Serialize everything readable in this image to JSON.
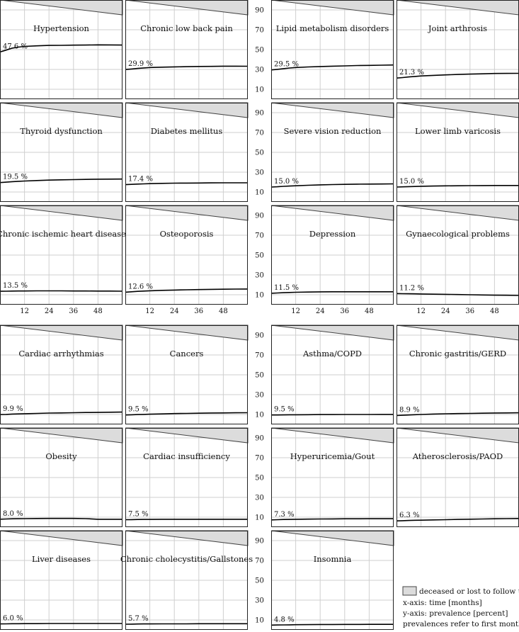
{
  "chart_data": {
    "type": "line",
    "grid": true,
    "xlim": [
      0,
      60
    ],
    "ylim": [
      0,
      100
    ],
    "xticks": [
      12,
      24,
      36,
      48
    ],
    "yticks": [
      10,
      30,
      50,
      70,
      90
    ],
    "x": [
      0,
      3,
      6,
      9,
      12,
      18,
      24,
      30,
      36,
      42,
      48,
      54,
      60
    ],
    "legend": {
      "placement": "bottom-right",
      "swatch_label": "deceased or lost to follow up",
      "notes": [
        "x-axis: time [months]",
        "y-axis: prevalence [percent]",
        "prevalences refer to first month"
      ]
    },
    "panels": [
      {
        "title": "Hypertension",
        "label": "47.6 %",
        "values": [
          47.6,
          49.5,
          51.5,
          52.5,
          53.2,
          53.8,
          54.2,
          54.3,
          54.5,
          54.6,
          54.8,
          54.7,
          54.6
        ]
      },
      {
        "title": "Chronic low back pain",
        "label": "29.9 %",
        "values": [
          29.9,
          30.4,
          31.0,
          31.5,
          31.9,
          32.3,
          32.6,
          32.8,
          33.0,
          33.1,
          33.3,
          33.3,
          33.2
        ]
      },
      {
        "title": "Lipid metabolism disorders",
        "label": "29.5 %",
        "values": [
          29.5,
          30.1,
          30.8,
          31.4,
          31.9,
          32.5,
          32.9,
          33.3,
          33.6,
          33.9,
          34.1,
          34.3,
          34.5
        ]
      },
      {
        "title": "Joint arthrosis",
        "label": "21.3 %",
        "values": [
          21.3,
          21.8,
          22.4,
          22.9,
          23.4,
          24.0,
          24.5,
          24.9,
          25.3,
          25.6,
          25.9,
          26.0,
          26.1
        ]
      },
      {
        "title": "Thyroid dysfunction",
        "label": "19.5 %",
        "values": [
          19.5,
          19.9,
          20.4,
          20.8,
          21.1,
          21.6,
          22.0,
          22.3,
          22.5,
          22.7,
          22.9,
          23.0,
          23.1
        ]
      },
      {
        "title": "Diabetes mellitus",
        "label": "17.4 %",
        "values": [
          17.4,
          17.7,
          18.0,
          18.2,
          18.4,
          18.7,
          18.9,
          19.0,
          19.1,
          19.2,
          19.3,
          19.3,
          19.3
        ]
      },
      {
        "title": "Severe vision reduction",
        "label": "15.0 %",
        "values": [
          15.0,
          15.3,
          15.7,
          16.0,
          16.3,
          16.8,
          17.2,
          17.5,
          17.7,
          17.9,
          18.0,
          18.1,
          18.2
        ]
      },
      {
        "title": "Lower limb varicosis",
        "label": "15.0 %",
        "values": [
          15.0,
          15.2,
          15.4,
          15.6,
          15.8,
          16.0,
          16.2,
          16.3,
          16.4,
          16.5,
          16.6,
          16.6,
          16.6
        ]
      },
      {
        "title": "Chronic ischemic heart disease",
        "label": "13.5 %",
        "values": [
          13.5,
          13.6,
          13.7,
          13.8,
          13.8,
          13.9,
          13.9,
          13.9,
          13.8,
          13.8,
          13.7,
          13.7,
          13.6
        ]
      },
      {
        "title": "Osteoporosis",
        "label": "12.6 %",
        "values": [
          12.6,
          13.0,
          13.4,
          13.7,
          14.0,
          14.4,
          14.7,
          15.0,
          15.2,
          15.4,
          15.6,
          15.7,
          15.8
        ]
      },
      {
        "title": "Depression",
        "label": "11.5 %",
        "values": [
          11.5,
          11.8,
          12.1,
          12.3,
          12.5,
          12.7,
          12.9,
          13.0,
          13.0,
          13.0,
          13.0,
          13.0,
          13.0
        ]
      },
      {
        "title": "Gynaecological problems",
        "label": "11.2 %",
        "values": [
          11.2,
          11.1,
          11.0,
          10.9,
          10.8,
          10.6,
          10.4,
          10.2,
          10.0,
          9.8,
          9.6,
          9.5,
          9.3
        ]
      },
      {
        "title": "Cardiac arrhythmias",
        "label": "9.9 %",
        "values": [
          9.9,
          10.1,
          10.4,
          10.6,
          10.8,
          11.1,
          11.4,
          11.6,
          11.8,
          12.0,
          12.1,
          12.3,
          12.4
        ]
      },
      {
        "title": "Cancers",
        "label": "9.5 %",
        "values": [
          9.5,
          9.7,
          9.9,
          10.1,
          10.3,
          10.6,
          10.9,
          11.1,
          11.3,
          11.5,
          11.6,
          11.7,
          11.8
        ]
      },
      {
        "title": "Asthma/COPD",
        "label": "9.5 %",
        "values": [
          9.5,
          9.5,
          9.6,
          9.7,
          9.7,
          9.8,
          9.9,
          9.9,
          10.0,
          10.0,
          10.0,
          10.1,
          10.1
        ]
      },
      {
        "title": "Chronic gastritis/GERD",
        "label": "8.9 %",
        "values": [
          8.9,
          9.2,
          9.5,
          9.8,
          10.0,
          10.4,
          10.7,
          10.9,
          11.1,
          11.3,
          11.5,
          11.6,
          11.7
        ]
      },
      {
        "title": "Obesity",
        "label": "8.0 %",
        "values": [
          8.0,
          8.2,
          8.4,
          8.5,
          8.6,
          8.7,
          8.8,
          8.8,
          8.8,
          8.6,
          7.9,
          7.9,
          7.9
        ]
      },
      {
        "title": "Cardiac insufficiency",
        "label": "7.5 %",
        "values": [
          7.5,
          7.6,
          7.7,
          7.8,
          7.8,
          7.9,
          7.9,
          7.9,
          7.9,
          7.9,
          7.9,
          7.9,
          7.9
        ]
      },
      {
        "title": "Hyperuricemia/Gout",
        "label": "7.3 %",
        "values": [
          7.3,
          7.5,
          7.7,
          7.8,
          7.9,
          8.1,
          8.2,
          8.3,
          8.4,
          8.4,
          8.5,
          8.5,
          8.5
        ]
      },
      {
        "title": "Atherosclerosis/PAOD",
        "label": "6.3 %",
        "values": [
          6.3,
          6.5,
          6.7,
          6.9,
          7.0,
          7.3,
          7.5,
          7.8,
          8.0,
          8.2,
          8.4,
          8.6,
          8.7
        ]
      },
      {
        "title": "Liver diseases",
        "label": "6.0 %",
        "values": [
          6.0,
          6.1,
          6.2,
          6.2,
          6.3,
          6.3,
          6.4,
          6.4,
          6.4,
          6.4,
          6.4,
          6.4,
          6.4
        ]
      },
      {
        "title": "Chronic cholecystitis/Gallstones",
        "label": "5.7 %",
        "values": [
          5.7,
          5.8,
          5.9,
          6.0,
          6.0,
          6.1,
          6.1,
          6.1,
          6.2,
          6.2,
          6.2,
          6.2,
          6.2
        ]
      },
      {
        "title": "Insomnia",
        "label": "4.8 %",
        "values": [
          4.8,
          4.9,
          5.0,
          5.1,
          5.2,
          5.3,
          5.4,
          5.4,
          5.5,
          5.5,
          5.6,
          5.6,
          5.6
        ]
      }
    ],
    "deceased_band": {
      "x": [
        0,
        60
      ],
      "lower": [
        100,
        85
      ]
    }
  }
}
